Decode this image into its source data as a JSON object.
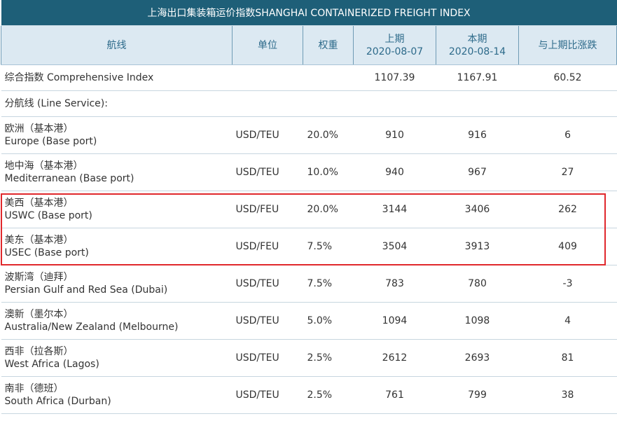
{
  "title": "上海出口集装箱运价指数SHANGHAI CONTAINERIZED FREIGHT INDEX",
  "headers": {
    "route": "航线",
    "unit": "单位",
    "weight": "权重",
    "prev_label": "上期",
    "prev_date": "2020-08-07",
    "curr_label": "本期",
    "curr_date": "2020-08-14",
    "change": "与上期比涨跌"
  },
  "comprehensive": {
    "label": "综合指数 Comprehensive Index",
    "prev": "1107.39",
    "curr": "1167.91",
    "change": "60.52"
  },
  "line_service_label": "分航线 (Line Service):",
  "rows": [
    {
      "cn": "欧洲（基本港）",
      "en": "Europe (Base port)",
      "unit": "USD/TEU",
      "weight": "20.0%",
      "prev": "910",
      "curr": "916",
      "change": "6"
    },
    {
      "cn": "地中海（基本港）",
      "en": "Mediterranean (Base port)",
      "unit": "USD/TEU",
      "weight": "10.0%",
      "prev": "940",
      "curr": "967",
      "change": "27"
    },
    {
      "cn": "美西（基本港）",
      "en": "USWC (Base port)",
      "unit": "USD/FEU",
      "weight": "20.0%",
      "prev": "3144",
      "curr": "3406",
      "change": "262"
    },
    {
      "cn": "美东（基本港）",
      "en": "USEC (Base port)",
      "unit": "USD/FEU",
      "weight": "7.5%",
      "prev": "3504",
      "curr": "3913",
      "change": "409"
    },
    {
      "cn": "波斯湾（迪拜）",
      "en": "Persian Gulf and Red Sea (Dubai)",
      "unit": "USD/TEU",
      "weight": "7.5%",
      "prev": "783",
      "curr": "780",
      "change": "-3"
    },
    {
      "cn": "澳新（墨尔本）",
      "en": "Australia/New Zealand (Melbourne)",
      "unit": "USD/TEU",
      "weight": "5.0%",
      "prev": "1094",
      "curr": "1098",
      "change": "4"
    },
    {
      "cn": "西非（拉各斯）",
      "en": "West Africa (Lagos)",
      "unit": "USD/TEU",
      "weight": "2.5%",
      "prev": "2612",
      "curr": "2693",
      "change": "81"
    },
    {
      "cn": "南非（德班）",
      "en": "South Africa (Durban)",
      "unit": "USD/TEU",
      "weight": "2.5%",
      "prev": "761",
      "curr": "799",
      "change": "38"
    }
  ],
  "colors": {
    "title_bg": "#1e5f78",
    "header_bg": "#dce9f2",
    "header_text": "#2d6a8a",
    "highlight_border": "#e0282c"
  }
}
